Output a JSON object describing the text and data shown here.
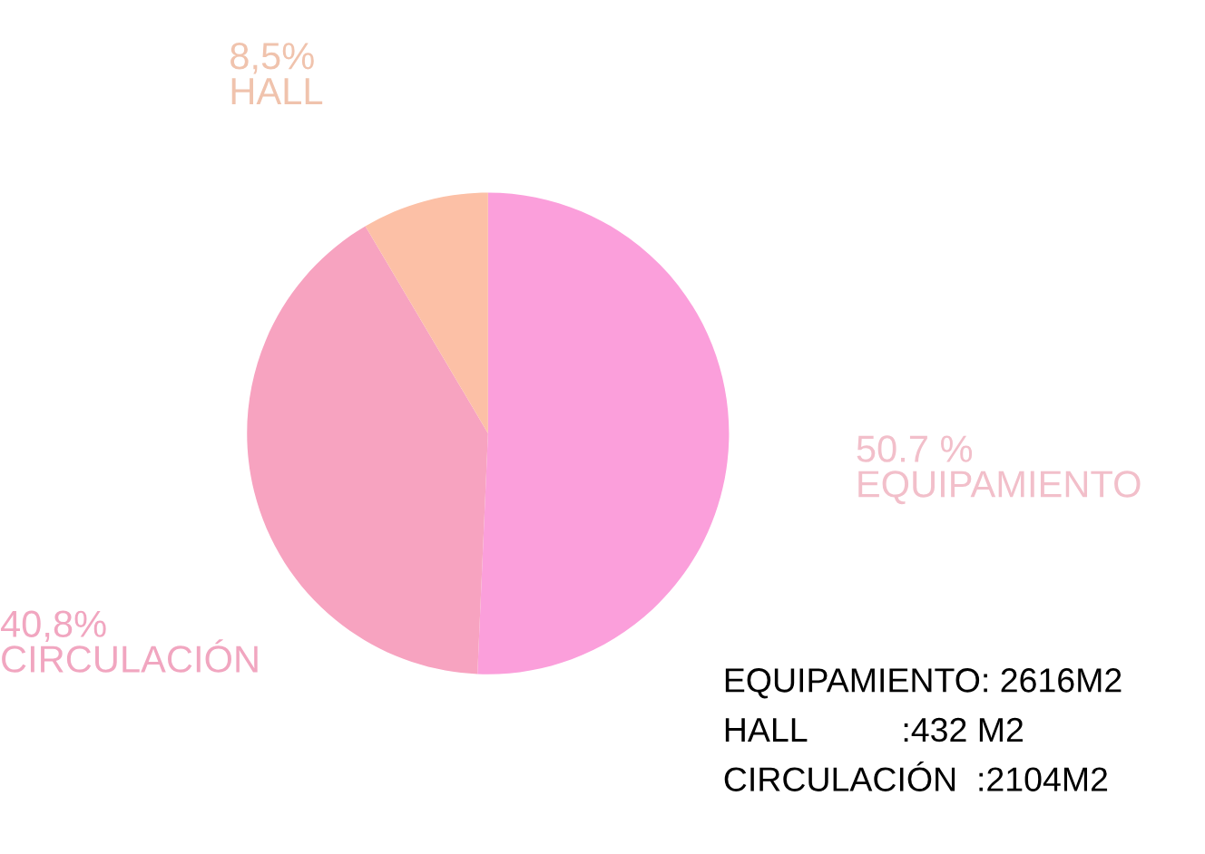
{
  "chart_data": {
    "type": "pie",
    "categories": [
      "EQUIPAMIENTO",
      "CIRCULACIÓN",
      "HALL"
    ],
    "values": [
      50.7,
      40.8,
      8.5
    ],
    "value_labels": [
      "50.7 %",
      "40,8%",
      "8,5%"
    ],
    "colors": [
      "#fb9fdb",
      "#f7a3c0",
      "#fcc0a6"
    ],
    "annotations": [
      "EQUIPAMIENTO: 2616M2",
      "HALL          :432 M2",
      "CIRCULACIÓN  :2104M2"
    ],
    "legend": false
  }
}
